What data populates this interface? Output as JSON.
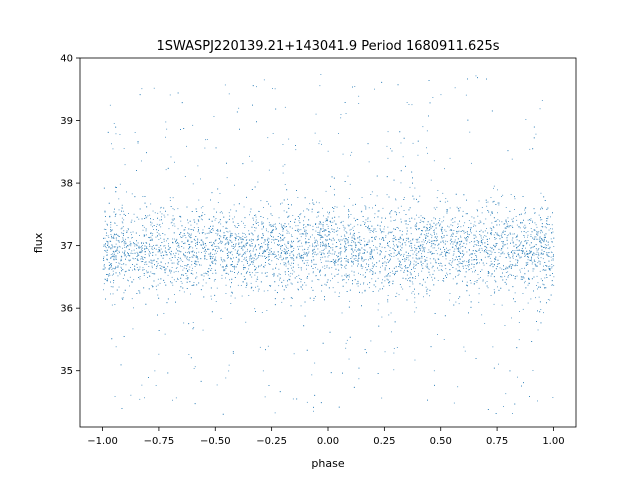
{
  "chart_data": {
    "type": "scatter",
    "title": "1SWASPJ220139.21+143041.9 Period 1680911.625s",
    "xlabel": "phase",
    "ylabel": "flux",
    "xlim": [
      -1.1,
      1.1
    ],
    "ylim": [
      34.1,
      40.0
    ],
    "xticks": [
      -1.0,
      -0.75,
      -0.5,
      -0.25,
      0.0,
      0.25,
      0.5,
      0.75,
      1.0
    ],
    "xtick_labels": [
      "−1.00",
      "−0.75",
      "−0.50",
      "−0.25",
      "0.00",
      "0.25",
      "0.50",
      "0.75",
      "1.00"
    ],
    "yticks": [
      35,
      36,
      37,
      38,
      39,
      40
    ],
    "ytick_labels": [
      "35",
      "36",
      "37",
      "38",
      "39",
      "40"
    ],
    "grid": false,
    "legend": "none",
    "series": [
      {
        "color": "#1f77b4",
        "description_points": {
          "x_range": [
            -1.0,
            1.0
          ],
          "band_center": 36.95,
          "band_low": 36.3,
          "band_high": 37.6,
          "outlier_min": 34.3,
          "outlier_max": 39.75
        }
      }
    ]
  }
}
